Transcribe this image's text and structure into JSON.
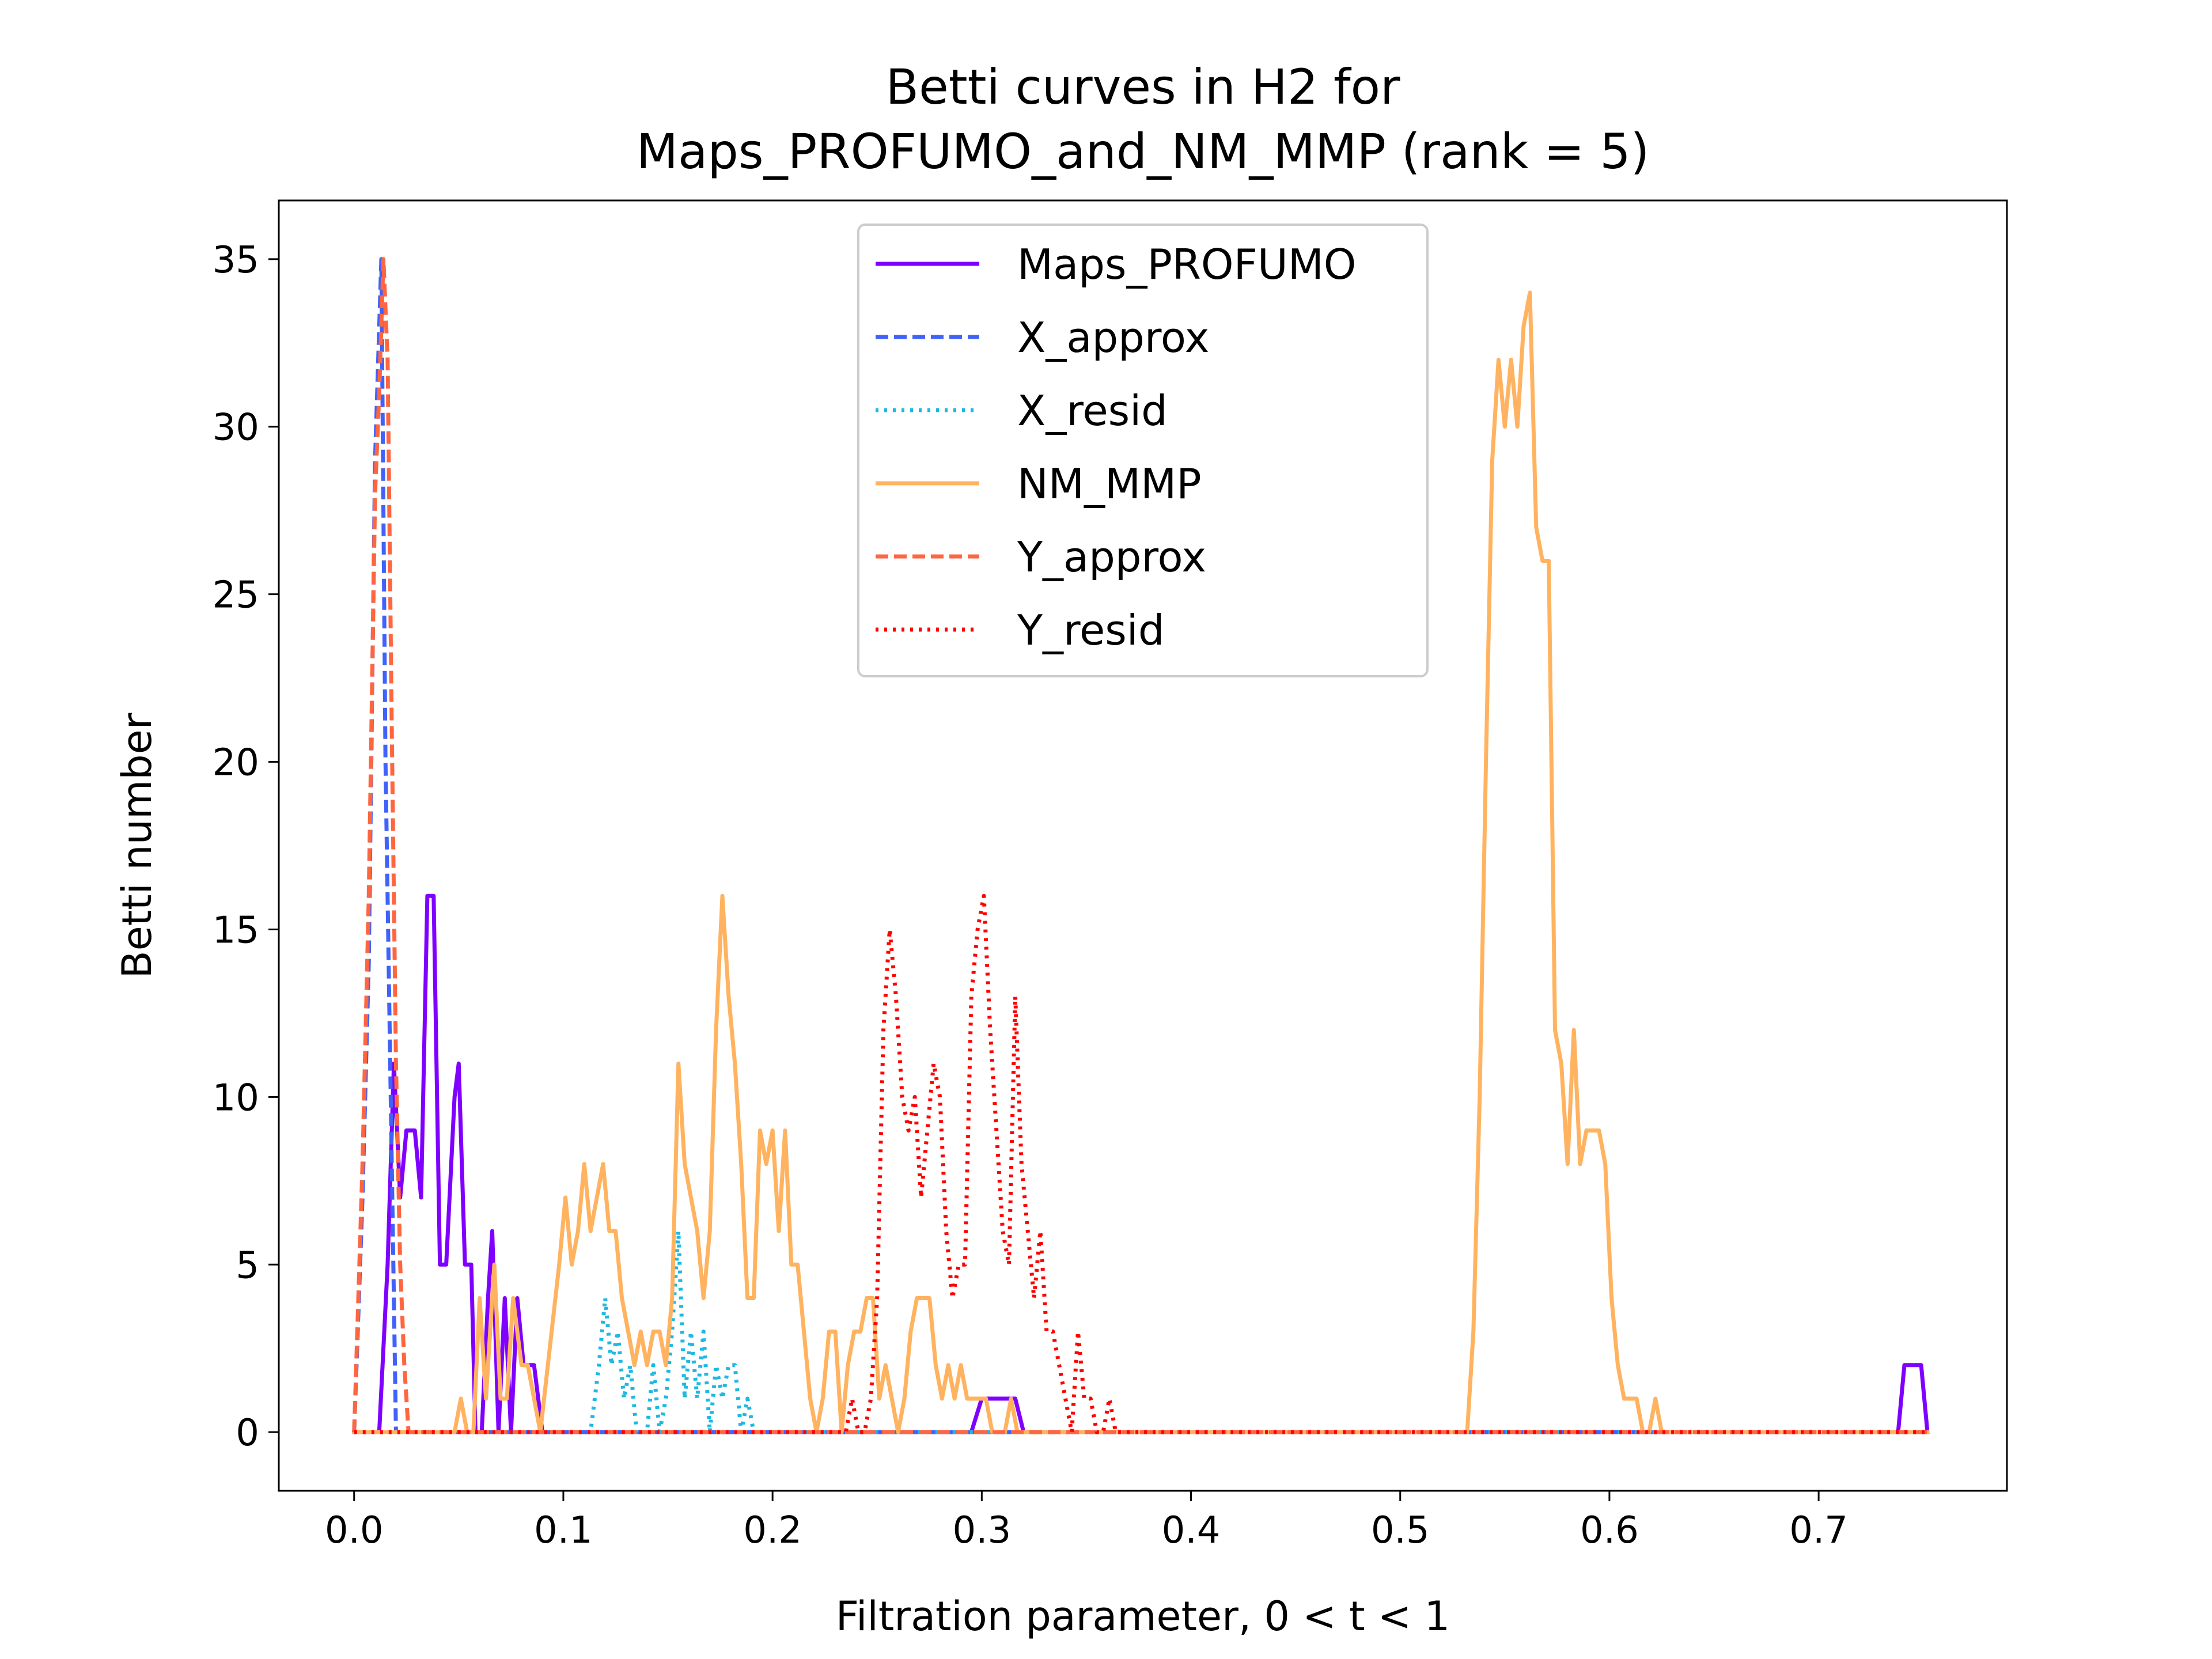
{
  "chart_data": {
    "type": "line",
    "title_lines": [
      "Betti curves in H2 for",
      "Maps_PROFUMO_and_NM_MMP (rank = 5)"
    ],
    "xlabel": "Filtration parameter, 0 < t < 1",
    "ylabel": "Betti number",
    "xlim": [
      -0.036,
      0.79
    ],
    "ylim": [
      -1.75,
      36.75
    ],
    "x_ticks": [
      0.0,
      0.1,
      0.2,
      0.3,
      0.4,
      0.5,
      0.6,
      0.7
    ],
    "x_tick_labels": [
      "0.0",
      "0.1",
      "0.2",
      "0.3",
      "0.4",
      "0.5",
      "0.6",
      "0.7"
    ],
    "y_ticks": [
      0,
      5,
      10,
      15,
      20,
      25,
      30,
      35
    ],
    "y_tick_labels": [
      "0",
      "5",
      "10",
      "15",
      "20",
      "25",
      "30",
      "35"
    ],
    "grid": false,
    "legend_position": "top-center",
    "series": [
      {
        "name": "Maps_PROFUMO",
        "color": "#7f00ff",
        "dash": "solid",
        "points": [
          [
            0.0,
            0
          ],
          [
            0.012,
            0
          ],
          [
            0.016,
            5
          ],
          [
            0.019,
            11
          ],
          [
            0.022,
            7
          ],
          [
            0.025,
            9
          ],
          [
            0.029,
            9
          ],
          [
            0.032,
            7
          ],
          [
            0.035,
            16
          ],
          [
            0.038,
            16
          ],
          [
            0.041,
            5
          ],
          [
            0.044,
            5
          ],
          [
            0.048,
            10
          ],
          [
            0.05,
            11
          ],
          [
            0.053,
            5
          ],
          [
            0.056,
            5
          ],
          [
            0.058,
            0
          ],
          [
            0.061,
            0
          ],
          [
            0.064,
            4
          ],
          [
            0.066,
            6
          ],
          [
            0.069,
            0
          ],
          [
            0.072,
            4
          ],
          [
            0.075,
            0
          ],
          [
            0.078,
            4
          ],
          [
            0.081,
            2
          ],
          [
            0.086,
            2
          ],
          [
            0.09,
            0
          ],
          [
            0.295,
            0
          ],
          [
            0.3,
            1
          ],
          [
            0.31,
            1
          ],
          [
            0.316,
            1
          ],
          [
            0.32,
            0
          ],
          [
            0.738,
            0
          ],
          [
            0.741,
            2
          ],
          [
            0.749,
            2
          ],
          [
            0.752,
            0
          ]
        ]
      },
      {
        "name": "X_approx",
        "color": "#4062fa",
        "dash": "dashed",
        "points": [
          [
            0.0,
            0
          ],
          [
            0.004,
            7
          ],
          [
            0.007,
            14
          ],
          [
            0.01,
            29
          ],
          [
            0.013,
            35
          ],
          [
            0.015,
            20
          ],
          [
            0.018,
            8
          ],
          [
            0.02,
            0
          ],
          [
            0.752,
            0
          ]
        ]
      },
      {
        "name": "X_resid",
        "color": "#1cb9e3",
        "dash": "dotted",
        "points": [
          [
            0.0,
            0
          ],
          [
            0.113,
            0
          ],
          [
            0.117,
            2
          ],
          [
            0.12,
            4
          ],
          [
            0.123,
            2
          ],
          [
            0.126,
            3
          ],
          [
            0.129,
            1
          ],
          [
            0.132,
            2
          ],
          [
            0.135,
            0
          ],
          [
            0.14,
            0
          ],
          [
            0.143,
            2
          ],
          [
            0.146,
            0
          ],
          [
            0.149,
            1
          ],
          [
            0.152,
            3
          ],
          [
            0.155,
            6
          ],
          [
            0.158,
            1
          ],
          [
            0.161,
            3
          ],
          [
            0.164,
            1
          ],
          [
            0.167,
            3
          ],
          [
            0.17,
            0
          ],
          [
            0.173,
            2
          ],
          [
            0.176,
            1
          ],
          [
            0.179,
            2
          ],
          [
            0.182,
            2
          ],
          [
            0.185,
            0
          ],
          [
            0.188,
            1
          ],
          [
            0.191,
            0
          ],
          [
            0.752,
            0
          ]
        ]
      },
      {
        "name": "NM_MMP",
        "color": "#ffb360",
        "dash": "solid",
        "points": [
          [
            0.0,
            0
          ],
          [
            0.048,
            0
          ],
          [
            0.051,
            1
          ],
          [
            0.054,
            0
          ],
          [
            0.057,
            0
          ],
          [
            0.06,
            4
          ],
          [
            0.063,
            1
          ],
          [
            0.067,
            5
          ],
          [
            0.07,
            1
          ],
          [
            0.073,
            1
          ],
          [
            0.076,
            4
          ],
          [
            0.08,
            2
          ],
          [
            0.083,
            2
          ],
          [
            0.086,
            1
          ],
          [
            0.089,
            0
          ],
          [
            0.098,
            5
          ],
          [
            0.101,
            7
          ],
          [
            0.104,
            5
          ],
          [
            0.107,
            6
          ],
          [
            0.11,
            8
          ],
          [
            0.113,
            6
          ],
          [
            0.116,
            7
          ],
          [
            0.119,
            8
          ],
          [
            0.122,
            6
          ],
          [
            0.125,
            6
          ],
          [
            0.128,
            4
          ],
          [
            0.131,
            3
          ],
          [
            0.134,
            2
          ],
          [
            0.137,
            3
          ],
          [
            0.14,
            2
          ],
          [
            0.143,
            3
          ],
          [
            0.146,
            3
          ],
          [
            0.149,
            2
          ],
          [
            0.152,
            4
          ],
          [
            0.155,
            11
          ],
          [
            0.158,
            8
          ],
          [
            0.161,
            7
          ],
          [
            0.164,
            6
          ],
          [
            0.167,
            4
          ],
          [
            0.17,
            6
          ],
          [
            0.173,
            12
          ],
          [
            0.176,
            16
          ],
          [
            0.179,
            13
          ],
          [
            0.182,
            11
          ],
          [
            0.185,
            8
          ],
          [
            0.188,
            4
          ],
          [
            0.191,
            4
          ],
          [
            0.194,
            9
          ],
          [
            0.197,
            8
          ],
          [
            0.2,
            9
          ],
          [
            0.203,
            6
          ],
          [
            0.206,
            9
          ],
          [
            0.209,
            5
          ],
          [
            0.212,
            5
          ],
          [
            0.215,
            3
          ],
          [
            0.218,
            1
          ],
          [
            0.221,
            0
          ],
          [
            0.224,
            1
          ],
          [
            0.227,
            3
          ],
          [
            0.23,
            3
          ],
          [
            0.233,
            0
          ],
          [
            0.236,
            2
          ],
          [
            0.239,
            3
          ],
          [
            0.242,
            3
          ],
          [
            0.245,
            4
          ],
          [
            0.248,
            4
          ],
          [
            0.251,
            1
          ],
          [
            0.254,
            2
          ],
          [
            0.257,
            1
          ],
          [
            0.26,
            0
          ],
          [
            0.263,
            1
          ],
          [
            0.266,
            3
          ],
          [
            0.269,
            4
          ],
          [
            0.272,
            4
          ],
          [
            0.275,
            4
          ],
          [
            0.278,
            2
          ],
          [
            0.281,
            1
          ],
          [
            0.284,
            2
          ],
          [
            0.287,
            1
          ],
          [
            0.29,
            2
          ],
          [
            0.293,
            1
          ],
          [
            0.296,
            1
          ],
          [
            0.299,
            1
          ],
          [
            0.302,
            1
          ],
          [
            0.305,
            0
          ],
          [
            0.308,
            0
          ],
          [
            0.311,
            0
          ],
          [
            0.314,
            1
          ],
          [
            0.317,
            0
          ],
          [
            0.532,
            0
          ],
          [
            0.535,
            3
          ],
          [
            0.538,
            10
          ],
          [
            0.541,
            20
          ],
          [
            0.544,
            29
          ],
          [
            0.547,
            32
          ],
          [
            0.55,
            30
          ],
          [
            0.553,
            32
          ],
          [
            0.556,
            30
          ],
          [
            0.559,
            33
          ],
          [
            0.562,
            34
          ],
          [
            0.565,
            27
          ],
          [
            0.568,
            26
          ],
          [
            0.571,
            26
          ],
          [
            0.574,
            12
          ],
          [
            0.577,
            11
          ],
          [
            0.58,
            8
          ],
          [
            0.583,
            12
          ],
          [
            0.586,
            8
          ],
          [
            0.589,
            9
          ],
          [
            0.592,
            9
          ],
          [
            0.595,
            9
          ],
          [
            0.598,
            8
          ],
          [
            0.601,
            4
          ],
          [
            0.604,
            2
          ],
          [
            0.607,
            1
          ],
          [
            0.61,
            1
          ],
          [
            0.613,
            1
          ],
          [
            0.616,
            0
          ],
          [
            0.619,
            0
          ],
          [
            0.622,
            1
          ],
          [
            0.625,
            0
          ],
          [
            0.752,
            0
          ]
        ]
      },
      {
        "name": "Y_approx",
        "color": "#ff6640",
        "dash": "dashed",
        "points": [
          [
            0.0,
            0
          ],
          [
            0.004,
            8
          ],
          [
            0.007,
            16
          ],
          [
            0.01,
            28
          ],
          [
            0.012,
            31
          ],
          [
            0.014,
            35
          ],
          [
            0.016,
            32
          ],
          [
            0.018,
            21
          ],
          [
            0.02,
            11
          ],
          [
            0.022,
            5
          ],
          [
            0.024,
            2
          ],
          [
            0.026,
            0
          ],
          [
            0.752,
            0
          ]
        ]
      },
      {
        "name": "Y_resid",
        "color": "#ff0000",
        "dash": "dotted",
        "points": [
          [
            0.0,
            0
          ],
          [
            0.235,
            0
          ],
          [
            0.238,
            1
          ],
          [
            0.241,
            0
          ],
          [
            0.244,
            0
          ],
          [
            0.247,
            1
          ],
          [
            0.25,
            4
          ],
          [
            0.253,
            12
          ],
          [
            0.256,
            15
          ],
          [
            0.259,
            13
          ],
          [
            0.262,
            10
          ],
          [
            0.265,
            9
          ],
          [
            0.268,
            10
          ],
          [
            0.271,
            7
          ],
          [
            0.274,
            9
          ],
          [
            0.277,
            11
          ],
          [
            0.28,
            10
          ],
          [
            0.283,
            6
          ],
          [
            0.286,
            4
          ],
          [
            0.289,
            5
          ],
          [
            0.292,
            5
          ],
          [
            0.295,
            13
          ],
          [
            0.298,
            15
          ],
          [
            0.301,
            16
          ],
          [
            0.304,
            12
          ],
          [
            0.307,
            9
          ],
          [
            0.31,
            6
          ],
          [
            0.313,
            5
          ],
          [
            0.316,
            13
          ],
          [
            0.319,
            8
          ],
          [
            0.322,
            6
          ],
          [
            0.325,
            4
          ],
          [
            0.328,
            6
          ],
          [
            0.331,
            3
          ],
          [
            0.334,
            3
          ],
          [
            0.337,
            2
          ],
          [
            0.34,
            1
          ],
          [
            0.343,
            0
          ],
          [
            0.346,
            3
          ],
          [
            0.349,
            1
          ],
          [
            0.352,
            1
          ],
          [
            0.355,
            0
          ],
          [
            0.358,
            0
          ],
          [
            0.361,
            1
          ],
          [
            0.364,
            0
          ],
          [
            0.752,
            0
          ]
        ]
      }
    ]
  }
}
